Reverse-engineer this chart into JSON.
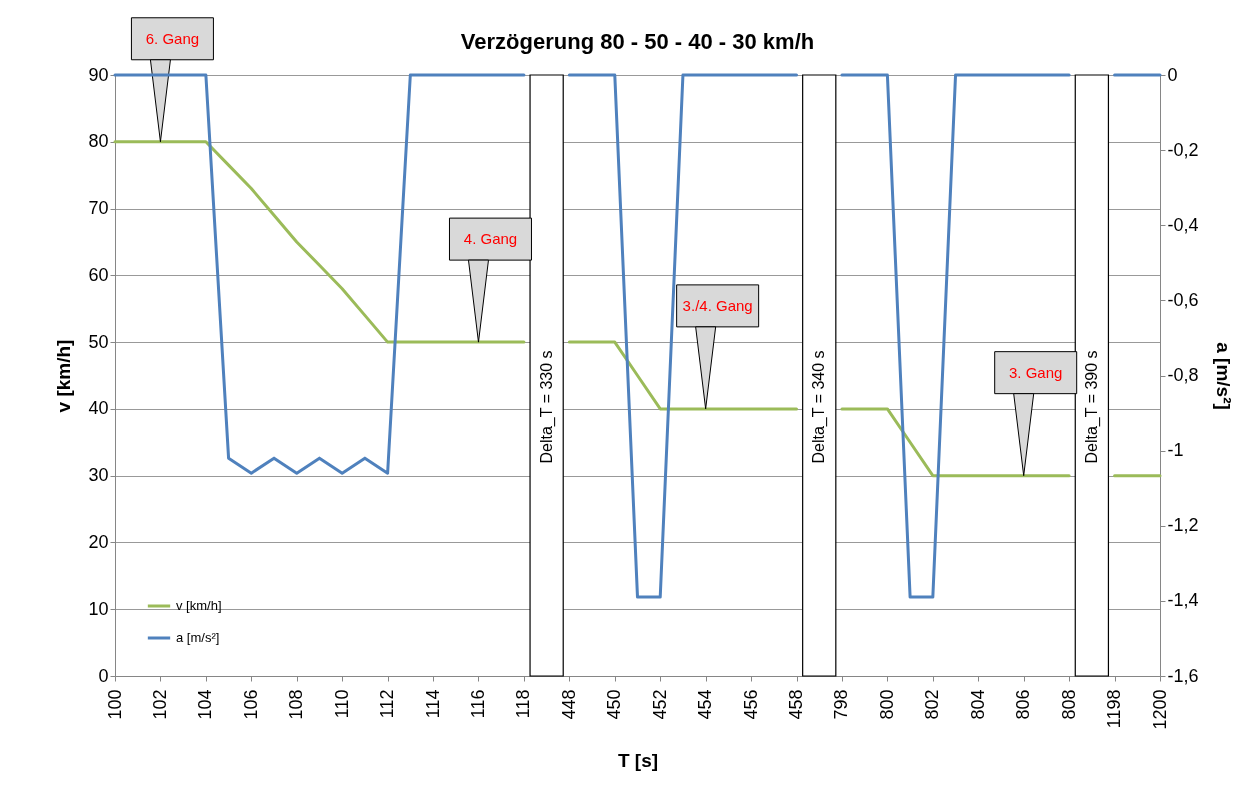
{
  "chart_data": {
    "type": "line",
    "title": "Verzögerung 80 - 50 - 40 - 30 km/h",
    "xlabel": "T [s]",
    "ylabel": "v [km/h]",
    "y2label": "a [m/s²]",
    "categories": [
      "100",
      null,
      "102",
      null,
      "104",
      null,
      "106",
      null,
      "108",
      null,
      "110",
      null,
      "112",
      null,
      "114",
      null,
      "116",
      null,
      "118",
      null,
      "448",
      null,
      "450",
      null,
      "452",
      null,
      "454",
      null,
      "456",
      null,
      "458",
      null,
      "798",
      null,
      "800",
      null,
      "802",
      null,
      "804",
      null,
      "806",
      null,
      "808",
      null,
      "1198",
      null,
      "1200"
    ],
    "series": [
      {
        "name": "v [km/h]",
        "color": "#9bbb59",
        "values": [
          80,
          80,
          80,
          80,
          80,
          76.5,
          73,
          69,
          65,
          61.5,
          58,
          54,
          50,
          50,
          50,
          50,
          50,
          50,
          50,
          null,
          50,
          50,
          50,
          45,
          40,
          40,
          40,
          40,
          40,
          40,
          40,
          null,
          40,
          40,
          40,
          35,
          30,
          30,
          30,
          30,
          30,
          30,
          30,
          null,
          30,
          30,
          30
        ]
      },
      {
        "name": "a [m/s²]",
        "axis": "y2",
        "color": "#4f81bd",
        "values": [
          0,
          0,
          0,
          0,
          0,
          -1.02,
          -1.06,
          -1.02,
          -1.06,
          -1.02,
          -1.06,
          -1.02,
          -1.06,
          0,
          0,
          0,
          0,
          0,
          0,
          null,
          0,
          0,
          0,
          -1.39,
          -1.39,
          0,
          0,
          0,
          0,
          0,
          0,
          null,
          0,
          0,
          0,
          -1.39,
          -1.39,
          0,
          0,
          0,
          0,
          0,
          0,
          null,
          0,
          0,
          0
        ]
      }
    ],
    "ylim": [
      0,
      90
    ],
    "yticks": [
      0,
      10,
      20,
      30,
      40,
      50,
      60,
      70,
      80,
      90
    ],
    "y2lim": [
      -1.6,
      0
    ],
    "y2ticks": [
      {
        "value": -1.6,
        "label": "-1,6"
      },
      {
        "value": -1.4,
        "label": "-1,4"
      },
      {
        "value": -1.2,
        "label": "-1,2"
      },
      -1,
      {
        "value": -0.8,
        "label": "-0,8"
      },
      {
        "value": -0.6,
        "label": "-0,6"
      },
      {
        "value": -0.4,
        "label": "-0,4"
      },
      {
        "value": -0.2,
        "label": "-0,2"
      },
      0
    ],
    "annotations": [
      {
        "text": "6. Gang",
        "x": "102",
        "y": 80
      },
      {
        "text": "4. Gang",
        "x": "116",
        "y": 50
      },
      {
        "text": "3./4.  Gang",
        "x": "454",
        "y": 40
      },
      {
        "text": "3. Gang",
        "x": "806",
        "y": 30
      },
      "Delta_T = 330 s",
      "Delta_T = 340 s",
      "Delta_T = 390 s"
    ],
    "grid": "y",
    "legend": "bottom left"
  }
}
